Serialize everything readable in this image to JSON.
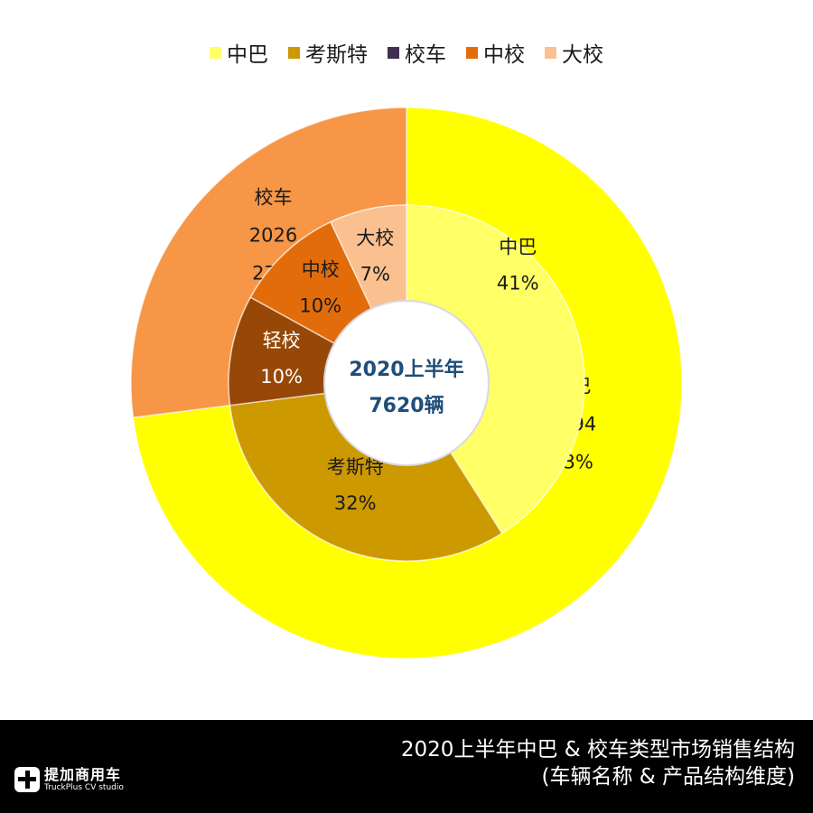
{
  "chart_data": {
    "type": "pie",
    "subtype": "double-donut",
    "title": "2020上半年中巴 & 校车类型市场销售结构",
    "subtitle": "(车辆名称 & 产品结构维度)",
    "center_text": [
      "2020上半年",
      "7620辆"
    ],
    "total": 7620,
    "legend": [
      {
        "label": "中巴",
        "color": "#FFFF66"
      },
      {
        "label": "考斯特",
        "color": "#CC9900"
      },
      {
        "label": "校车",
        "color": "#403151"
      },
      {
        "label": "中校",
        "color": "#E36C0A"
      },
      {
        "label": "大校",
        "color": "#FAC090"
      }
    ],
    "legend_position": "top",
    "outer_ring": [
      {
        "label": "中巴",
        "value": 5594,
        "percent": 73,
        "color": "#FFFF00",
        "text_color": "#1a1a1a",
        "lines": [
          "中巴",
          "5594",
          "73%"
        ]
      },
      {
        "label": "校车",
        "value": 2026,
        "percent": 27,
        "color": "#F79646",
        "text_color": "#1a1a1a",
        "lines": [
          "校车",
          "2026",
          "27%"
        ]
      }
    ],
    "inner_ring": [
      {
        "label": "中巴",
        "percent": 41,
        "color": "#FFFF66",
        "text_color": "#1a1a1a",
        "lines": [
          "中巴",
          "41%"
        ]
      },
      {
        "label": "考斯特",
        "percent": 32,
        "color": "#CC9900",
        "text_color": "#1a1a1a",
        "lines": [
          "考斯特",
          "32%"
        ]
      },
      {
        "label": "轻校",
        "percent": 10,
        "color": "#974806",
        "text_color": "#ffffff",
        "lines": [
          "轻校",
          "10%"
        ]
      },
      {
        "label": "中校",
        "percent": 10,
        "color": "#E36C0A",
        "text_color": "#1a1a1a",
        "lines": [
          "中校",
          "10%"
        ]
      },
      {
        "label": "大校",
        "percent": 7,
        "color": "#FAC090",
        "text_color": "#1a1a1a",
        "lines": [
          "大校",
          "7%"
        ]
      }
    ]
  },
  "footer": {
    "title_line1": "2020上半年中巴 & 校车类型市场销售结构",
    "title_line2": "(车辆名称 & 产品结构维度)",
    "logo_cn": "提加商用车",
    "logo_en": "TruckPlus CV studio",
    "logo_icon": "truckplus-logo-icon"
  }
}
